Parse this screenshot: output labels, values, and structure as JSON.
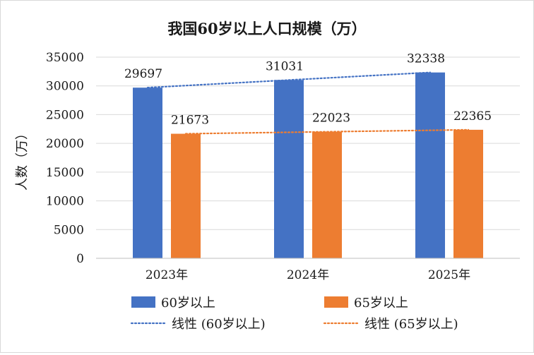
{
  "chart_data": {
    "type": "bar",
    "title": "我国60岁以上人口规模（万）",
    "ylabel": "人数（万）",
    "xlabel": "",
    "categories": [
      "2023年",
      "2024年",
      "2025年"
    ],
    "ylim": [
      0,
      35000
    ],
    "yticks": [
      0,
      5000,
      10000,
      15000,
      20000,
      25000,
      30000,
      35000
    ],
    "grid": true,
    "legend_position": "bottom",
    "series": [
      {
        "name": "60岁以上",
        "values": [
          29697,
          31031,
          32338
        ],
        "color": "#4472C4"
      },
      {
        "name": "65岁以上",
        "values": [
          21673,
          22023,
          22365
        ],
        "color": "#ED7D31"
      }
    ],
    "trendlines": [
      {
        "name": "线性 (60岁以上)",
        "series_index": 0,
        "type": "linear",
        "style": "dotted",
        "color": "#4472C4"
      },
      {
        "name": "线性 (65岁以上)",
        "series_index": 1,
        "type": "linear",
        "style": "dotted",
        "color": "#ED7D31"
      }
    ]
  }
}
